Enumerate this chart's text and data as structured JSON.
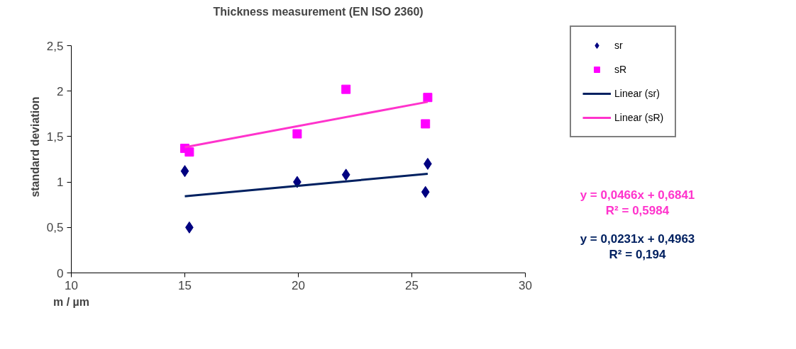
{
  "chart_data": {
    "type": "scatter",
    "title": "Thickness measurement (EN ISO 2360)",
    "xlabel": "m / µm",
    "ylabel": "standard deviation",
    "xlim": [
      10,
      30
    ],
    "xticks": [
      10,
      15,
      20,
      25,
      30
    ],
    "ylim": [
      0,
      2.5
    ],
    "yticks": [
      0,
      {
        "value": 0.5,
        "label": "0,5"
      },
      1,
      {
        "value": 1.5,
        "label": "1,5"
      },
      2,
      {
        "value": 2.5,
        "label": "2,5"
      }
    ],
    "grid": false,
    "legend": "right",
    "series": [
      {
        "name": "sr",
        "marker": "diamond",
        "color": "#000080",
        "x": [
          15.0,
          15.2,
          19.95,
          22.1,
          25.7,
          25.6
        ],
        "values": [
          1.12,
          0.5,
          1.0,
          1.08,
          1.2,
          0.89
        ]
      },
      {
        "name": "sR",
        "marker": "square",
        "color": "#ff00ff",
        "x": [
          15.0,
          15.2,
          19.95,
          22.1,
          25.7,
          25.6
        ],
        "values": [
          1.37,
          1.33,
          1.53,
          2.02,
          1.93,
          1.64
        ]
      },
      {
        "name": "Linear (sr)",
        "type": "line",
        "marker": "none",
        "line_style": "solid",
        "color": "#002060",
        "x": [
          15.0,
          25.7
        ],
        "values": [
          0.843,
          1.09
        ]
      },
      {
        "name": "Linear (sR)",
        "type": "line",
        "marker": "none",
        "line_style": "solid",
        "color": "#ff33cc",
        "x": [
          15.0,
          25.7
        ],
        "values": [
          1.383,
          1.882
        ]
      }
    ],
    "annotations": [
      "y = 0,0466x + 0,6841",
      "R² = 0,5984",
      "y = 0,0231x + 0,4963",
      "R² = 0,194"
    ]
  }
}
